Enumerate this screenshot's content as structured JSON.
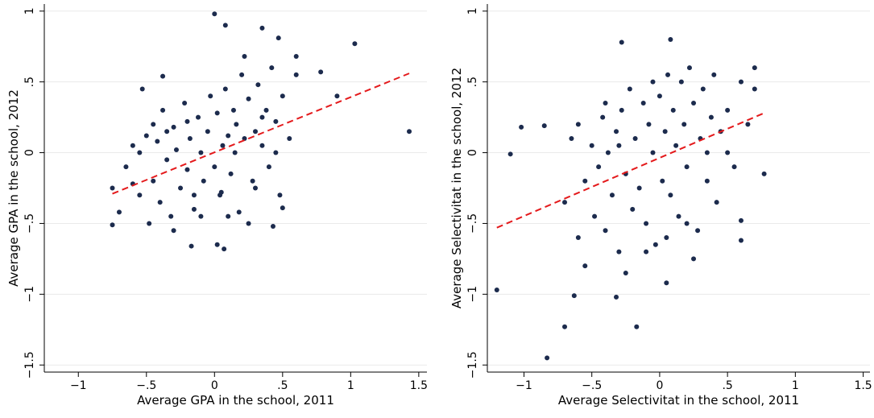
{
  "chart_data": [
    {
      "type": "scatter",
      "x_label": "Average GPA in the school, 2011",
      "y_label": "Average GPA in the school, 2012",
      "xlim": [
        -1.25,
        1.56
      ],
      "ylim": [
        -1.55,
        1.05
      ],
      "xticks": [
        {
          "value": -1,
          "label": "−1"
        },
        {
          "value": -0.5,
          "label": "−.5"
        },
        0,
        {
          "value": 0.5,
          "label": ".5"
        },
        1,
        {
          "value": 1.5,
          "label": "1.5"
        }
      ],
      "yticks": [
        {
          "value": -1.5,
          "label": "−1.5"
        },
        {
          "value": -1,
          "label": "−1"
        },
        {
          "value": -0.5,
          "label": "−.5"
        },
        0,
        {
          "value": 0.5,
          "label": ".5"
        },
        1
      ],
      "grid": true,
      "series": [
        {
          "color": "#1c2b4d",
          "x": [
            -0.7,
            -0.65,
            -0.6,
            -0.55,
            -0.5,
            -0.48,
            -0.45,
            -0.42,
            -0.4,
            -0.38,
            -0.35,
            -0.32,
            -0.3,
            -0.28,
            -0.25,
            -0.22,
            -0.2,
            -0.18,
            -0.15,
            -0.12,
            -0.1,
            -0.08,
            -0.05,
            -0.03,
            0,
            0.02,
            0.04,
            0.06,
            0.08,
            0.1,
            0.12,
            0.14,
            0.16,
            0.18,
            0.2,
            0.22,
            0.25,
            0.28,
            0.3,
            0.32,
            0.35,
            0.38,
            0.4,
            0.42,
            0.45,
            0.48,
            0.5,
            0.55,
            0.6,
            -0.6,
            -0.45,
            -0.3,
            -0.2,
            -0.1,
            0.05,
            0.15,
            0.25,
            0.35,
            -0.55,
            -0.35,
            -0.15,
            0.1,
            0.3,
            0.45,
            0,
            0.08,
            0.35,
            0.47,
            1.03,
            1.43,
            0.78,
            0.9,
            -0.17,
            0.07,
            0.02,
            -0.75,
            -0.75,
            0.43,
            0.5,
            0.6,
            0.22,
            -0.53,
            -0.38
          ],
          "values": [
            -0.42,
            -0.1,
            0.05,
            -0.3,
            0.12,
            -0.5,
            -0.2,
            0.08,
            -0.35,
            0.3,
            -0.05,
            -0.45,
            0.18,
            0.02,
            -0.25,
            0.35,
            -0.12,
            0.1,
            -0.4,
            0.25,
            0.0,
            -0.2,
            0.15,
            0.4,
            -0.1,
            0.28,
            -0.3,
            0.05,
            0.45,
            0.12,
            -0.15,
            0.3,
            0.2,
            -0.42,
            0.55,
            0.1,
            0.38,
            -0.2,
            0.15,
            0.48,
            0.05,
            0.3,
            -0.1,
            0.6,
            0.22,
            -0.3,
            0.4,
            0.1,
            0.55,
            -0.22,
            0.2,
            -0.55,
            0.22,
            -0.45,
            -0.28,
            0.0,
            -0.5,
            0.25,
            0.0,
            0.15,
            -0.3,
            -0.45,
            -0.25,
            0.0,
            0.98,
            0.9,
            0.88,
            0.81,
            0.77,
            0.15,
            0.57,
            0.4,
            -0.66,
            -0.68,
            -0.65,
            -0.51,
            -0.25,
            -0.52,
            -0.39,
            0.68,
            0.68,
            0.45,
            0.54
          ]
        }
      ],
      "fit": {
        "color": "#e41a1c",
        "x": [
          -0.75,
          1.43
        ],
        "values": [
          -0.29,
          0.56
        ]
      }
    },
    {
      "type": "scatter",
      "x_label": "Average Selectivitat in the school, 2011",
      "y_label": "Average Selectivitat in the school, 2012",
      "xlim": [
        -1.27,
        1.55
      ],
      "ylim": [
        -1.55,
        1.05
      ],
      "xticks": [
        {
          "value": -1,
          "label": "−1"
        },
        {
          "value": -0.5,
          "label": "−.5"
        },
        0,
        {
          "value": 0.5,
          "label": ".5"
        },
        1,
        {
          "value": 1.5,
          "label": "1.5"
        }
      ],
      "yticks": [
        {
          "value": -1.5,
          "label": "−1.5"
        },
        {
          "value": -1,
          "label": "−1"
        },
        {
          "value": -0.5,
          "label": "−.5"
        },
        0,
        {
          "value": 0.5,
          "label": ".5"
        },
        1
      ],
      "grid": true,
      "series": [
        {
          "color": "#1c2b4d",
          "x": [
            -0.7,
            -0.65,
            -0.6,
            -0.55,
            -0.5,
            -0.48,
            -0.45,
            -0.42,
            -0.4,
            -0.38,
            -0.35,
            -0.32,
            -0.3,
            -0.28,
            -0.25,
            -0.22,
            -0.2,
            -0.18,
            -0.15,
            -0.12,
            -0.1,
            -0.08,
            -0.05,
            -0.03,
            0,
            0.02,
            0.04,
            0.06,
            0.08,
            0.1,
            0.12,
            0.14,
            0.16,
            0.18,
            0.2,
            0.22,
            0.25,
            0.28,
            0.3,
            0.32,
            0.35,
            0.38,
            0.4,
            0.42,
            0.45,
            0.5,
            0.55,
            0.6,
            0.65,
            0.7,
            -0.55,
            -0.4,
            -0.25,
            -0.1,
            0.05,
            0.2,
            0.35,
            -0.6,
            -0.3,
            -0.05,
            0.25,
            0.5,
            -1.2,
            -0.83,
            -0.7,
            -0.17,
            -0.63,
            -0.32,
            -0.28,
            0.08,
            0.77,
            -1.1,
            -1.02,
            -0.85,
            0.05,
            0.6,
            0.6,
            0.7
          ],
          "values": [
            -0.35,
            0.1,
            -0.6,
            -0.2,
            0.05,
            -0.45,
            -0.1,
            0.25,
            -0.55,
            0.0,
            -0.3,
            0.15,
            -0.7,
            0.3,
            -0.15,
            0.45,
            -0.4,
            0.1,
            -0.25,
            0.35,
            -0.5,
            0.2,
            0.0,
            -0.65,
            0.4,
            -0.2,
            0.15,
            0.55,
            -0.3,
            0.3,
            0.05,
            -0.45,
            0.5,
            0.2,
            -0.1,
            0.6,
            0.35,
            -0.55,
            0.1,
            0.45,
            -0.2,
            0.25,
            0.55,
            -0.35,
            0.15,
            0.3,
            -0.1,
            0.5,
            0.2,
            0.6,
            -0.8,
            0.35,
            -0.85,
            -0.7,
            -0.6,
            -0.5,
            0.0,
            0.2,
            0.05,
            0.5,
            -0.75,
            0.0,
            -0.97,
            -1.45,
            -1.23,
            -1.23,
            -1.01,
            -1.02,
            0.78,
            0.8,
            -0.15,
            -0.01,
            0.18,
            0.19,
            -0.92,
            -0.48,
            -0.62,
            0.45
          ]
        }
      ],
      "fit": {
        "color": "#e41a1c",
        "x": [
          -1.2,
          0.77
        ],
        "values": [
          -0.53,
          0.28
        ]
      }
    }
  ]
}
